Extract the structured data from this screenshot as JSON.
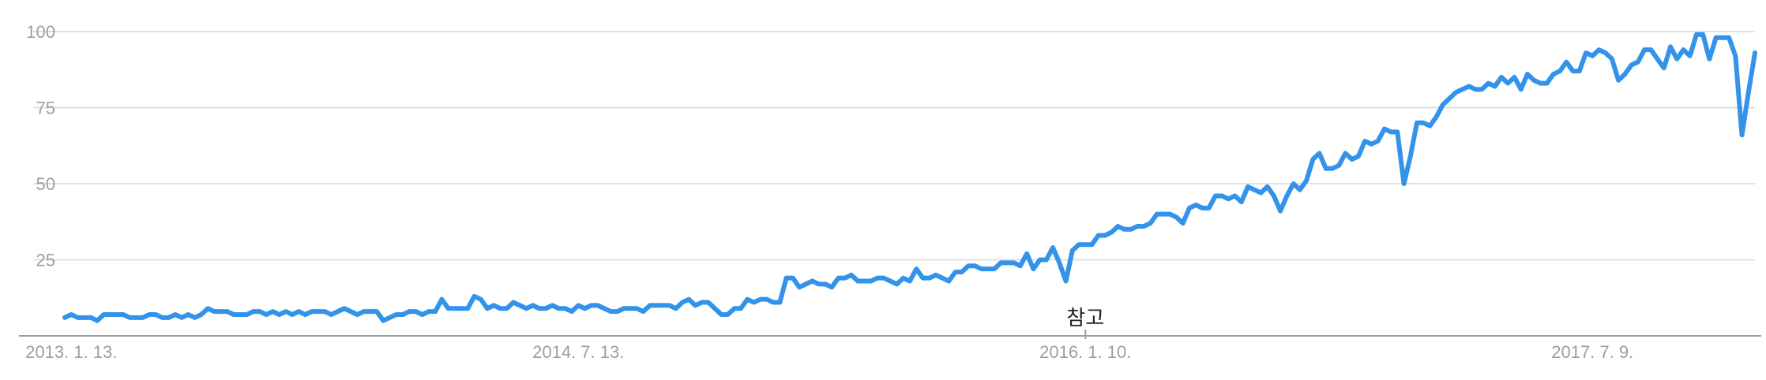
{
  "chart_data": {
    "type": "line",
    "title": "",
    "xlabel": "",
    "ylabel": "",
    "ylim": [
      0,
      100
    ],
    "y_ticks": [
      25,
      50,
      75,
      100
    ],
    "grid": true,
    "legend": "none",
    "x_tick_labels": [
      "2013. 1. 13.",
      "2014. 7. 13.",
      "2016. 1. 10.",
      "2017. 7. 9."
    ],
    "x_tick_dates": [
      "2013-01-13",
      "2014-07-13",
      "2016-01-10",
      "2017-07-09"
    ],
    "annotation": {
      "label": "참고",
      "date": "2016-01-10"
    },
    "series": [
      {
        "color": "#3393ea",
        "x_start": "2013-01-06",
        "interval_days": 7,
        "values": [
          6,
          7,
          6,
          6,
          6,
          5,
          7,
          7,
          7,
          7,
          6,
          6,
          6,
          7,
          7,
          6,
          6,
          7,
          6,
          7,
          6,
          7,
          9,
          8,
          8,
          8,
          7,
          7,
          7,
          8,
          8,
          7,
          8,
          7,
          8,
          7,
          8,
          7,
          8,
          8,
          8,
          7,
          8,
          9,
          8,
          7,
          8,
          8,
          8,
          5,
          6,
          7,
          7,
          8,
          8,
          7,
          8,
          8,
          12,
          9,
          9,
          9,
          9,
          13,
          12,
          9,
          10,
          9,
          9,
          11,
          10,
          9,
          10,
          9,
          9,
          10,
          9,
          9,
          8,
          10,
          9,
          10,
          10,
          9,
          8,
          8,
          9,
          9,
          9,
          8,
          10,
          10,
          10,
          10,
          9,
          11,
          12,
          10,
          11,
          11,
          9,
          7,
          7,
          9,
          9,
          12,
          11,
          12,
          12,
          11,
          11,
          19,
          19,
          16,
          17,
          18,
          17,
          17,
          16,
          19,
          19,
          20,
          18,
          18,
          18,
          19,
          19,
          18,
          17,
          19,
          18,
          22,
          19,
          19,
          20,
          19,
          18,
          21,
          21,
          23,
          23,
          22,
          22,
          22,
          24,
          24,
          24,
          23,
          27,
          22,
          25,
          25,
          29,
          24,
          18,
          28,
          30,
          30,
          30,
          33,
          33,
          34,
          36,
          35,
          35,
          36,
          36,
          37,
          40,
          40,
          40,
          39,
          37,
          42,
          43,
          42,
          42,
          46,
          46,
          45,
          46,
          44,
          49,
          48,
          47,
          49,
          46,
          41,
          46,
          50,
          48,
          51,
          58,
          60,
          55,
          55,
          56,
          60,
          58,
          59,
          64,
          63,
          64,
          68,
          67,
          67,
          50,
          59,
          70,
          70,
          69,
          72,
          76,
          78,
          80,
          81,
          82,
          81,
          81,
          83,
          82,
          85,
          83,
          85,
          81,
          86,
          84,
          83,
          83,
          86,
          87,
          90,
          87,
          87,
          93,
          92,
          94,
          93,
          91,
          84,
          86,
          89,
          90,
          94,
          94,
          91,
          88,
          95,
          91,
          94,
          92,
          99,
          99,
          91,
          98,
          98,
          98,
          92,
          66,
          80,
          93
        ]
      }
    ]
  },
  "colors": {
    "line": "#3393ea",
    "grid": "#e0e0e0",
    "axis": "#9e9e9e",
    "tick_text": "#9e9e9e",
    "annotation_text": "#222222"
  }
}
